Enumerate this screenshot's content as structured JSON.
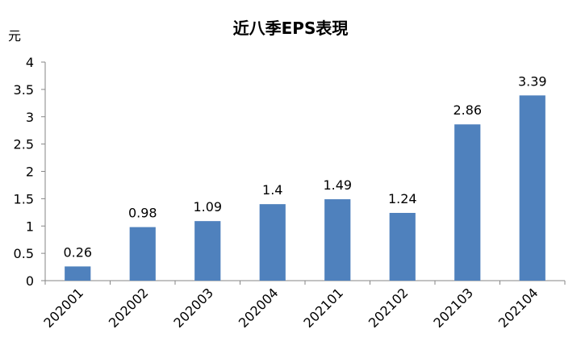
{
  "chart_data": {
    "type": "bar",
    "title": "近八季EPS表現",
    "ylabel": "元",
    "xlabel": "",
    "categories": [
      "202001",
      "202002",
      "202003",
      "202004",
      "202101",
      "202102",
      "202103",
      "202104"
    ],
    "values": [
      0.26,
      0.98,
      1.09,
      1.4,
      1.49,
      1.24,
      2.86,
      3.39
    ],
    "value_labels": [
      "0.26",
      "0.98",
      "1.09",
      "1.4",
      "1.49",
      "1.24",
      "2.86",
      "3.39"
    ],
    "ylim": [
      0,
      4
    ],
    "yticks": [
      "0",
      "0.5",
      "1",
      "1.5",
      "2",
      "2.5",
      "3",
      "3.5",
      "4"
    ],
    "grid": false,
    "legend": "none",
    "bar_color": "#4F81BD"
  }
}
